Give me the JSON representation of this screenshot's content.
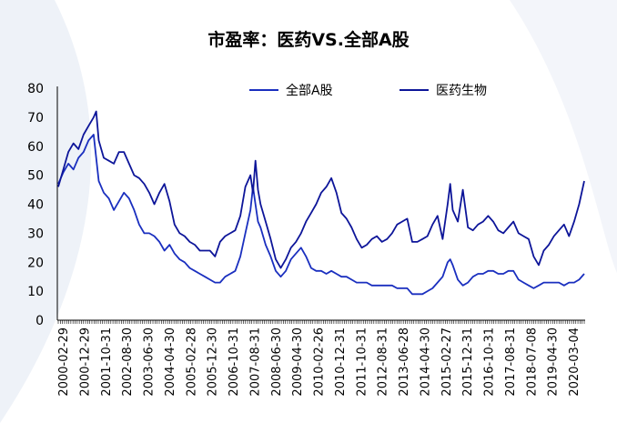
{
  "chart_data": {
    "type": "line",
    "title": "市盈率：医药VS.全部A股",
    "xlabel": "",
    "ylabel": "",
    "ylim": [
      0,
      80
    ],
    "y_ticks": [
      0,
      10,
      20,
      30,
      40,
      50,
      60,
      70,
      80
    ],
    "x_tick_labels": [
      "2000-02-29",
      "2000-12-29",
      "2001-10-31",
      "2002-08-30",
      "2003-06-30",
      "2004-04-30",
      "2005-02-28",
      "2005-12-30",
      "2006-10-31",
      "2007-08-31",
      "2008-06-30",
      "2009-04-30",
      "2010-02-26",
      "2010-12-31",
      "2011-10-31",
      "2012-08-31",
      "2013-06-28",
      "2014-04-30",
      "2015-02-27",
      "2015-12-31",
      "2016-10-31",
      "2017-08-31",
      "2018-07-08",
      "2019-04-30",
      "2020-03-04"
    ],
    "grid": false,
    "legend_position": "top",
    "x_period_start": "2000-02",
    "x_period_end": "2020-10",
    "series": [
      {
        "name": "全部A股",
        "color": "#1a2fbf",
        "values": [
          [
            2000.0,
            47
          ],
          [
            2000.2,
            51
          ],
          [
            2000.4,
            54
          ],
          [
            2000.6,
            52
          ],
          [
            2000.8,
            56
          ],
          [
            2001.0,
            58
          ],
          [
            2001.2,
            62
          ],
          [
            2001.4,
            64
          ],
          [
            2001.5,
            56
          ],
          [
            2001.6,
            48
          ],
          [
            2001.8,
            44
          ],
          [
            2002.0,
            42
          ],
          [
            2002.2,
            38
          ],
          [
            2002.4,
            41
          ],
          [
            2002.6,
            44
          ],
          [
            2002.8,
            42
          ],
          [
            2003.0,
            38
          ],
          [
            2003.2,
            33
          ],
          [
            2003.4,
            30
          ],
          [
            2003.6,
            30
          ],
          [
            2003.8,
            29
          ],
          [
            2004.0,
            27
          ],
          [
            2004.2,
            24
          ],
          [
            2004.4,
            26
          ],
          [
            2004.6,
            23
          ],
          [
            2004.8,
            21
          ],
          [
            2005.0,
            20
          ],
          [
            2005.2,
            18
          ],
          [
            2005.4,
            17
          ],
          [
            2005.6,
            16
          ],
          [
            2005.8,
            15
          ],
          [
            2006.0,
            14
          ],
          [
            2006.2,
            13
          ],
          [
            2006.4,
            13
          ],
          [
            2006.6,
            15
          ],
          [
            2006.8,
            16
          ],
          [
            2007.0,
            17
          ],
          [
            2007.2,
            22
          ],
          [
            2007.4,
            30
          ],
          [
            2007.6,
            38
          ],
          [
            2007.7,
            46
          ],
          [
            2007.8,
            40
          ],
          [
            2007.9,
            34
          ],
          [
            2008.0,
            32
          ],
          [
            2008.2,
            26
          ],
          [
            2008.4,
            22
          ],
          [
            2008.6,
            17
          ],
          [
            2008.8,
            15
          ],
          [
            2009.0,
            17
          ],
          [
            2009.2,
            21
          ],
          [
            2009.4,
            23
          ],
          [
            2009.6,
            25
          ],
          [
            2009.8,
            22
          ],
          [
            2010.0,
            18
          ],
          [
            2010.2,
            17
          ],
          [
            2010.4,
            17
          ],
          [
            2010.6,
            16
          ],
          [
            2010.8,
            17
          ],
          [
            2011.0,
            16
          ],
          [
            2011.2,
            15
          ],
          [
            2011.4,
            15
          ],
          [
            2011.6,
            14
          ],
          [
            2011.8,
            13
          ],
          [
            2012.0,
            13
          ],
          [
            2012.2,
            13
          ],
          [
            2012.4,
            12
          ],
          [
            2012.6,
            12
          ],
          [
            2012.8,
            12
          ],
          [
            2013.0,
            12
          ],
          [
            2013.2,
            12
          ],
          [
            2013.4,
            11
          ],
          [
            2013.6,
            11
          ],
          [
            2013.8,
            11
          ],
          [
            2014.0,
            9
          ],
          [
            2014.2,
            9
          ],
          [
            2014.4,
            9
          ],
          [
            2014.6,
            10
          ],
          [
            2014.8,
            11
          ],
          [
            2015.0,
            13
          ],
          [
            2015.2,
            15
          ],
          [
            2015.4,
            20
          ],
          [
            2015.5,
            21
          ],
          [
            2015.6,
            19
          ],
          [
            2015.8,
            14
          ],
          [
            2016.0,
            12
          ],
          [
            2016.2,
            13
          ],
          [
            2016.4,
            15
          ],
          [
            2016.6,
            16
          ],
          [
            2016.8,
            16
          ],
          [
            2017.0,
            17
          ],
          [
            2017.2,
            17
          ],
          [
            2017.4,
            16
          ],
          [
            2017.6,
            16
          ],
          [
            2017.8,
            17
          ],
          [
            2018.0,
            17
          ],
          [
            2018.2,
            14
          ],
          [
            2018.4,
            13
          ],
          [
            2018.6,
            12
          ],
          [
            2018.8,
            11
          ],
          [
            2019.0,
            12
          ],
          [
            2019.2,
            13
          ],
          [
            2019.4,
            13
          ],
          [
            2019.6,
            13
          ],
          [
            2019.8,
            13
          ],
          [
            2020.0,
            12
          ],
          [
            2020.2,
            13
          ],
          [
            2020.4,
            13
          ],
          [
            2020.6,
            14
          ],
          [
            2020.8,
            16
          ]
        ]
      },
      {
        "name": "医药生物",
        "color": "#0d1599",
        "values": [
          [
            2000.0,
            46
          ],
          [
            2000.2,
            52
          ],
          [
            2000.4,
            58
          ],
          [
            2000.6,
            61
          ],
          [
            2000.8,
            59
          ],
          [
            2001.0,
            64
          ],
          [
            2001.2,
            67
          ],
          [
            2001.4,
            70
          ],
          [
            2001.5,
            72
          ],
          [
            2001.6,
            62
          ],
          [
            2001.8,
            56
          ],
          [
            2002.0,
            55
          ],
          [
            2002.2,
            54
          ],
          [
            2002.4,
            58
          ],
          [
            2002.6,
            58
          ],
          [
            2002.8,
            54
          ],
          [
            2003.0,
            50
          ],
          [
            2003.2,
            49
          ],
          [
            2003.4,
            47
          ],
          [
            2003.6,
            44
          ],
          [
            2003.8,
            40
          ],
          [
            2004.0,
            44
          ],
          [
            2004.2,
            47
          ],
          [
            2004.4,
            41
          ],
          [
            2004.6,
            33
          ],
          [
            2004.8,
            30
          ],
          [
            2005.0,
            29
          ],
          [
            2005.2,
            27
          ],
          [
            2005.4,
            26
          ],
          [
            2005.6,
            24
          ],
          [
            2005.8,
            24
          ],
          [
            2006.0,
            24
          ],
          [
            2006.2,
            22
          ],
          [
            2006.4,
            27
          ],
          [
            2006.6,
            29
          ],
          [
            2006.8,
            30
          ],
          [
            2007.0,
            31
          ],
          [
            2007.2,
            36
          ],
          [
            2007.4,
            46
          ],
          [
            2007.6,
            50
          ],
          [
            2007.7,
            44
          ],
          [
            2007.8,
            55
          ],
          [
            2007.9,
            45
          ],
          [
            2008.0,
            40
          ],
          [
            2008.2,
            34
          ],
          [
            2008.4,
            28
          ],
          [
            2008.6,
            21
          ],
          [
            2008.8,
            18
          ],
          [
            2009.0,
            21
          ],
          [
            2009.2,
            25
          ],
          [
            2009.4,
            27
          ],
          [
            2009.6,
            30
          ],
          [
            2009.8,
            34
          ],
          [
            2010.0,
            37
          ],
          [
            2010.2,
            40
          ],
          [
            2010.4,
            44
          ],
          [
            2010.6,
            46
          ],
          [
            2010.8,
            49
          ],
          [
            2011.0,
            44
          ],
          [
            2011.2,
            37
          ],
          [
            2011.4,
            35
          ],
          [
            2011.6,
            32
          ],
          [
            2011.8,
            28
          ],
          [
            2012.0,
            25
          ],
          [
            2012.2,
            26
          ],
          [
            2012.4,
            28
          ],
          [
            2012.6,
            29
          ],
          [
            2012.8,
            27
          ],
          [
            2013.0,
            28
          ],
          [
            2013.2,
            30
          ],
          [
            2013.4,
            33
          ],
          [
            2013.6,
            34
          ],
          [
            2013.8,
            35
          ],
          [
            2014.0,
            27
          ],
          [
            2014.2,
            27
          ],
          [
            2014.4,
            28
          ],
          [
            2014.6,
            29
          ],
          [
            2014.8,
            33
          ],
          [
            2015.0,
            36
          ],
          [
            2015.2,
            28
          ],
          [
            2015.4,
            40
          ],
          [
            2015.5,
            47
          ],
          [
            2015.6,
            38
          ],
          [
            2015.8,
            34
          ],
          [
            2016.0,
            45
          ],
          [
            2016.2,
            32
          ],
          [
            2016.4,
            31
          ],
          [
            2016.6,
            33
          ],
          [
            2016.8,
            34
          ],
          [
            2017.0,
            36
          ],
          [
            2017.2,
            34
          ],
          [
            2017.4,
            31
          ],
          [
            2017.6,
            30
          ],
          [
            2017.8,
            32
          ],
          [
            2018.0,
            34
          ],
          [
            2018.2,
            30
          ],
          [
            2018.4,
            29
          ],
          [
            2018.6,
            28
          ],
          [
            2018.8,
            22
          ],
          [
            2019.0,
            19
          ],
          [
            2019.2,
            24
          ],
          [
            2019.4,
            26
          ],
          [
            2019.6,
            29
          ],
          [
            2019.8,
            31
          ],
          [
            2020.0,
            33
          ],
          [
            2020.2,
            29
          ],
          [
            2020.4,
            34
          ],
          [
            2020.6,
            40
          ],
          [
            2020.8,
            48
          ]
        ]
      }
    ]
  }
}
